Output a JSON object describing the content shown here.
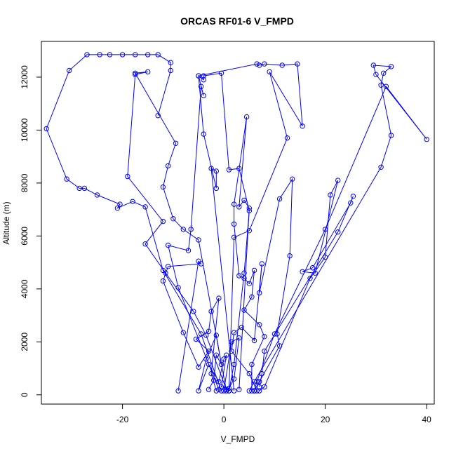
{
  "chart_data": {
    "type": "line",
    "title": "ORCAS RF01-6 V_FMPD",
    "xlabel": "V_FMPD",
    "ylabel": "Altitude (m)",
    "xlim": [
      -36,
      41.5
    ],
    "ylim": [
      -350,
      13350
    ],
    "xticks": [
      -20,
      0,
      20,
      40
    ],
    "yticks": [
      0,
      2000,
      4000,
      6000,
      8000,
      10000,
      12000
    ],
    "xtick_labels": [
      "-20",
      "0",
      "20",
      "40"
    ],
    "ytick_labels": [
      "0",
      "2000",
      "4000",
      "6000",
      "8000",
      "10000",
      "12000"
    ],
    "marker": "open-circle",
    "series_color": "#0000ff",
    "series": [
      {
        "points": [
          [
            -0.5,
            150
          ],
          [
            -4.5,
            2300
          ],
          [
            -12,
            4700
          ],
          [
            -15.5,
            7100
          ],
          [
            -18,
            7300
          ],
          [
            -21,
            7050
          ],
          [
            -20.5,
            7200
          ],
          [
            -25,
            7550
          ],
          [
            -27.5,
            7800
          ],
          [
            -28.5,
            7800
          ],
          [
            -31,
            8150
          ],
          [
            -35,
            10050
          ],
          [
            -30.5,
            12250
          ],
          [
            -27,
            12850
          ],
          [
            -24.5,
            12850
          ],
          [
            -22.5,
            12850
          ],
          [
            -20,
            12850
          ],
          [
            -17.5,
            12850
          ],
          [
            -15,
            12850
          ],
          [
            -13,
            12850
          ],
          [
            -10.5,
            12550
          ],
          [
            -10.5,
            12250
          ],
          [
            -13,
            10550
          ]
        ]
      },
      {
        "points": [
          [
            0.5,
            150
          ],
          [
            -5,
            5850
          ],
          [
            -8,
            6250
          ],
          [
            -10,
            6650
          ],
          [
            -12,
            7850
          ],
          [
            -11,
            8650
          ],
          [
            -9.5,
            9500
          ],
          [
            -17.5,
            12150
          ],
          [
            -15,
            12200
          ],
          [
            -17.5,
            12100
          ],
          [
            -19,
            8250
          ],
          [
            -12,
            6550
          ],
          [
            -15.5,
            5700
          ],
          [
            -11.5,
            4600
          ],
          [
            -6,
            3150
          ],
          [
            -3.5,
            2250
          ],
          [
            0.5,
            200
          ]
        ]
      },
      {
        "points": [
          [
            -1,
            200
          ],
          [
            -9,
            4050
          ],
          [
            -11,
            5650
          ],
          [
            -7,
            5450
          ],
          [
            -6.5,
            6250
          ],
          [
            -4.5,
            11650
          ],
          [
            -4,
            11300
          ],
          [
            -5,
            12050
          ],
          [
            -4,
            11900
          ],
          [
            -4,
            12050
          ],
          [
            -0.5,
            12150
          ],
          [
            1,
            8500
          ],
          [
            3,
            8550
          ],
          [
            5,
            6950
          ],
          [
            4,
            4600
          ],
          [
            2,
            1150
          ],
          [
            1,
            150
          ]
        ]
      },
      {
        "points": [
          [
            2,
            150
          ],
          [
            -2.5,
            8550
          ],
          [
            -1.5,
            8450
          ],
          [
            -1.5,
            7800
          ],
          [
            -4,
            9850
          ],
          [
            -5,
            12050
          ],
          [
            6.5,
            12500
          ],
          [
            7,
            12450
          ],
          [
            8,
            12500
          ],
          [
            11.5,
            12450
          ],
          [
            14.5,
            12500
          ],
          [
            15.5,
            10150
          ],
          [
            9,
            12200
          ],
          [
            12.5,
            9700
          ],
          [
            5,
            6200
          ],
          [
            2,
            5950
          ],
          [
            1,
            150
          ]
        ]
      },
      {
        "points": [
          [
            3,
            200
          ],
          [
            5,
            7050
          ],
          [
            4,
            7350
          ],
          [
            3,
            7100
          ],
          [
            4.5,
            10500
          ],
          [
            2,
            7200
          ],
          [
            2,
            6450
          ],
          [
            3,
            4500
          ],
          [
            4,
            4400
          ],
          [
            5,
            4200
          ],
          [
            6,
            4700
          ],
          [
            5.5,
            3700
          ],
          [
            4,
            3200
          ],
          [
            7,
            2650
          ],
          [
            8,
            2200
          ],
          [
            5.5,
            1150
          ],
          [
            5.5,
            150
          ]
        ]
      },
      {
        "points": [
          [
            6,
            150
          ],
          [
            7,
            500
          ],
          [
            11,
            1850
          ],
          [
            10.5,
            2300
          ],
          [
            13,
            5250
          ],
          [
            13.5,
            8150
          ],
          [
            11,
            7400
          ],
          [
            7,
            3850
          ],
          [
            7.5,
            4950
          ],
          [
            6,
            2050
          ],
          [
            3.5,
            2550
          ],
          [
            2,
            2350
          ],
          [
            1.5,
            1650
          ],
          [
            5,
            800
          ],
          [
            6.5,
            150
          ]
        ]
      },
      {
        "points": [
          [
            7,
            150
          ],
          [
            8,
            300
          ],
          [
            17,
            4400
          ],
          [
            20,
            5200
          ],
          [
            21,
            7550
          ],
          [
            22.5,
            8100
          ],
          [
            18,
            4600
          ],
          [
            15.5,
            4650
          ],
          [
            17.5,
            4800
          ],
          [
            25,
            7250
          ],
          [
            25.5,
            7500
          ],
          [
            22.5,
            6150
          ],
          [
            8,
            1650
          ],
          [
            7.5,
            800
          ],
          [
            7,
            300
          ]
        ]
      },
      {
        "points": [
          [
            5,
            150
          ],
          [
            6,
            500
          ],
          [
            31,
            8600
          ],
          [
            33,
            9800
          ],
          [
            31,
            11700
          ],
          [
            31.5,
            12150
          ],
          [
            33,
            12400
          ],
          [
            29.5,
            12450
          ],
          [
            30,
            12100
          ],
          [
            40,
            9650
          ],
          [
            32,
            11650
          ],
          [
            20,
            6250
          ],
          [
            10,
            2300
          ],
          [
            6.5,
            500
          ],
          [
            6,
            150
          ]
        ]
      },
      {
        "points": [
          [
            -9,
            150
          ],
          [
            -5,
            5050
          ],
          [
            -4.5,
            4950
          ],
          [
            -11,
            4850
          ],
          [
            -12,
            4300
          ],
          [
            -8,
            2350
          ],
          [
            -5,
            1050
          ],
          [
            -3,
            1650
          ],
          [
            -5.5,
            2100
          ],
          [
            -3,
            2400
          ],
          [
            -2.5,
            3150
          ],
          [
            -1,
            3650
          ],
          [
            -2.5,
            800
          ],
          [
            -1.5,
            150
          ]
        ]
      },
      {
        "points": [
          [
            -3,
            200
          ],
          [
            -2,
            550
          ],
          [
            -1.5,
            1500
          ],
          [
            -0.5,
            1150
          ],
          [
            -1.5,
            2250
          ],
          [
            -3.5,
            1350
          ],
          [
            -5,
            150
          ],
          [
            -3,
            1150
          ],
          [
            -1,
            500
          ],
          [
            0,
            1350
          ],
          [
            0.5,
            1500
          ],
          [
            -0.5,
            300
          ],
          [
            1,
            250
          ],
          [
            2,
            600
          ],
          [
            3,
            2150
          ],
          [
            1.5,
            2000
          ],
          [
            0,
            150
          ]
        ]
      }
    ]
  }
}
